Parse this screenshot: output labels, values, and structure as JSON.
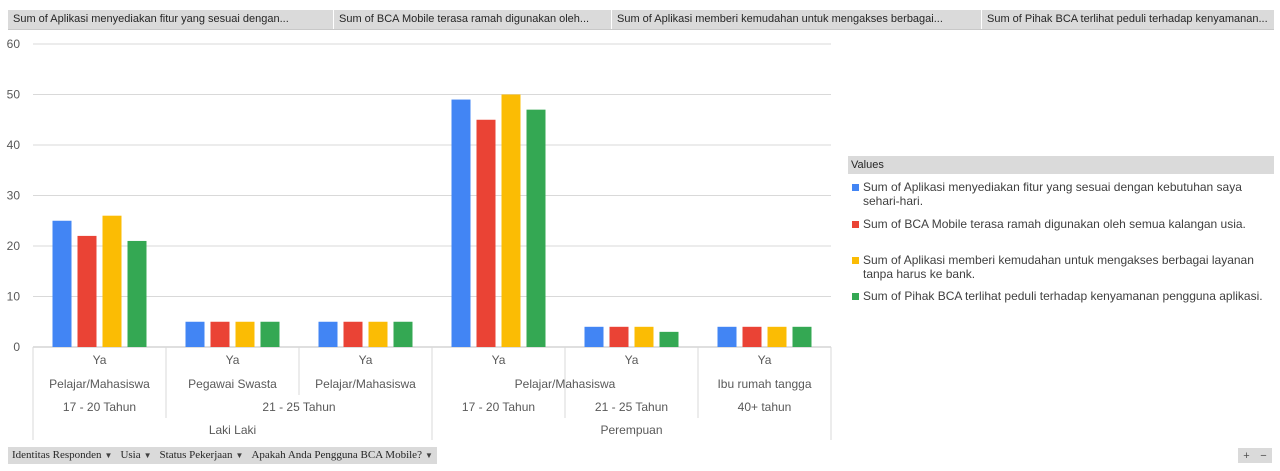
{
  "top_fields": [
    "Sum of Aplikasi menyediakan fitur yang sesuai dengan...",
    "Sum of BCA Mobile terasa ramah digunakan oleh...",
    "Sum of Aplikasi memberi kemudahan untuk mengakses berbagai...",
    "Sum of Pihak BCA terlihat peduli terhadap kenyamanan..."
  ],
  "legend": {
    "title": "Values",
    "items": [
      "Sum of Aplikasi menyediakan fitur yang sesuai dengan kebutuhan saya sehari-hari.",
      "Sum of BCA Mobile terasa ramah digunakan oleh semua kalangan usia.",
      "Sum of Aplikasi memberi kemudahan untuk mengakses berbagai layanan tanpa harus ke bank.",
      "Sum of Pihak BCA terlihat peduli terhadap kenyamanan pengguna aplikasi."
    ]
  },
  "bottom_fields": [
    "Identitas Responden",
    "Usia",
    "Status Pekerjaan",
    "Apakah Anda Pengguna BCA Mobile?"
  ],
  "zoom": {
    "plus": "+",
    "minus": "−"
  },
  "chart_data": {
    "type": "bar",
    "ylim": [
      0,
      60
    ],
    "yticks": [
      0,
      10,
      20,
      30,
      40,
      50,
      60
    ],
    "grid": true,
    "legend_position": "right",
    "categories": [
      {
        "level1": "Ya",
        "level2": "Pelajar/Mahasiswa",
        "level3": "17 - 20 Tahun",
        "level4": "Laki Laki"
      },
      {
        "level1": "Ya",
        "level2": "Pegawai Swasta",
        "level3": "21 - 25 Tahun",
        "level4": "Laki Laki"
      },
      {
        "level1": "Ya",
        "level2": "Pelajar/Mahasiswa",
        "level3": "21 - 25 Tahun",
        "level4": "Laki Laki"
      },
      {
        "level1": "Ya",
        "level2": "Pelajar/Mahasiswa",
        "level3": "17 - 20 Tahun",
        "level4": "Perempuan"
      },
      {
        "level1": "Ya",
        "level2": "Pelajar/Mahasiswa",
        "level3": "21 - 25 Tahun",
        "level4": "Perempuan"
      },
      {
        "level1": "Ya",
        "level2": "Ibu rumah tangga",
        "level3": "40+ tahun",
        "level4": "Perempuan"
      }
    ],
    "series": [
      {
        "name": "Sum of Aplikasi menyediakan fitur yang sesuai dengan kebutuhan saya sehari-hari.",
        "color": "#4285f4",
        "values": [
          25,
          5,
          5,
          49,
          4,
          4
        ]
      },
      {
        "name": "Sum of BCA Mobile terasa ramah digunakan oleh semua kalangan usia.",
        "color": "#ea4335",
        "values": [
          22,
          5,
          5,
          45,
          4,
          4
        ]
      },
      {
        "name": "Sum of Aplikasi memberi kemudahan untuk mengakses berbagai layanan tanpa harus ke bank.",
        "color": "#fbbc04",
        "values": [
          26,
          5,
          5,
          50,
          4,
          4
        ]
      },
      {
        "name": "Sum of Pihak BCA terlihat peduli terhadap kenyamanan pengguna aplikasi.",
        "color": "#34a853",
        "values": [
          21,
          5,
          5,
          47,
          3,
          4
        ]
      }
    ]
  }
}
